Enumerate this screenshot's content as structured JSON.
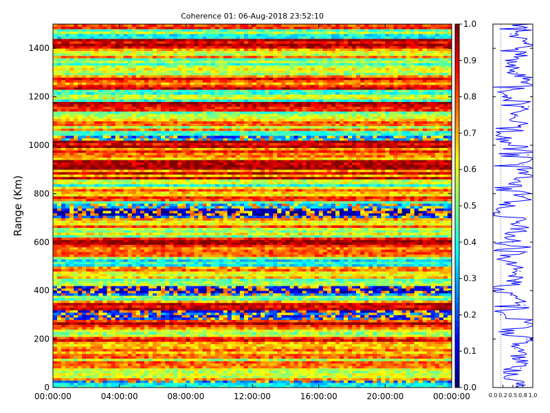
{
  "chart_data": [
    {
      "type": "heatmap",
      "title": "Coherence 01: 06-Aug-2018 23:52:10",
      "xlabel": "",
      "ylabel": "Range (Km)",
      "x_ticks": [
        "00:00:00",
        "04:00:00",
        "08:00:00",
        "12:00:00",
        "16:00:00",
        "20:00:00",
        "00:00:00"
      ],
      "y_ticks": [
        0,
        200,
        400,
        600,
        800,
        1000,
        1200,
        1400
      ],
      "ylim": [
        0,
        1500
      ],
      "color_scale": {
        "colormap": "jet",
        "range": [
          0,
          1
        ],
        "ticks": [
          "0.0",
          "0.1",
          "0.2",
          "0.3",
          "0.4",
          "0.5",
          "0.6",
          "0.7",
          "0.8",
          "0.9",
          "1.0"
        ]
      },
      "range_profile_km": [
        {
          "r": 20,
          "v": 0.35
        },
        {
          "r": 40,
          "v": 0.62
        },
        {
          "r": 80,
          "v": 0.68
        },
        {
          "r": 120,
          "v": 0.7
        },
        {
          "r": 160,
          "v": 0.66
        },
        {
          "r": 200,
          "v": 0.85
        },
        {
          "r": 220,
          "v": 0.45
        },
        {
          "r": 260,
          "v": 0.88
        },
        {
          "r": 300,
          "v": 0.22
        },
        {
          "r": 340,
          "v": 0.85
        },
        {
          "r": 380,
          "v": 0.4
        },
        {
          "r": 400,
          "v": 0.12
        },
        {
          "r": 440,
          "v": 0.55
        },
        {
          "r": 480,
          "v": 0.68
        },
        {
          "r": 520,
          "v": 0.4
        },
        {
          "r": 560,
          "v": 0.85
        },
        {
          "r": 600,
          "v": 0.9
        },
        {
          "r": 640,
          "v": 0.5
        },
        {
          "r": 680,
          "v": 0.66
        },
        {
          "r": 720,
          "v": 0.1
        },
        {
          "r": 750,
          "v": 0.4
        },
        {
          "r": 790,
          "v": 0.75
        },
        {
          "r": 840,
          "v": 0.52
        },
        {
          "r": 880,
          "v": 0.82
        },
        {
          "r": 920,
          "v": 0.88
        },
        {
          "r": 960,
          "v": 0.75
        },
        {
          "r": 1000,
          "v": 0.85
        },
        {
          "r": 1030,
          "v": 0.3
        },
        {
          "r": 1080,
          "v": 0.68
        },
        {
          "r": 1120,
          "v": 0.62
        },
        {
          "r": 1160,
          "v": 0.9
        },
        {
          "r": 1200,
          "v": 0.55
        },
        {
          "r": 1260,
          "v": 0.85
        },
        {
          "r": 1300,
          "v": 0.65
        },
        {
          "r": 1330,
          "v": 0.48
        },
        {
          "r": 1380,
          "v": 0.7
        },
        {
          "r": 1420,
          "v": 0.88
        },
        {
          "r": 1460,
          "v": 0.45
        },
        {
          "r": 1490,
          "v": 0.8
        }
      ]
    },
    {
      "type": "line",
      "title": "",
      "xlabel": "",
      "ylabel": "",
      "xlim": [
        0,
        1
      ],
      "x_ticks": [
        "0.0",
        "0.2",
        "0.5",
        "0.8",
        "1.0"
      ],
      "ylim": [
        0,
        1500
      ],
      "series": [
        {
          "color": "#0000ff",
          "x": [
            0.62,
            0.4,
            0.7,
            0.66,
            0.55,
            0.85,
            0.35,
            0.88,
            0.2,
            0.8,
            0.45,
            0.05,
            0.55,
            0.68,
            0.4,
            0.85,
            0.5,
            0.66,
            0.15,
            0.5,
            0.75,
            0.52,
            0.82,
            0.75,
            0.88,
            0.3,
            0.68,
            0.62,
            0.9,
            0.35,
            0.85,
            0.6,
            0.48,
            0.7,
            0.88,
            0.45,
            0.8,
            0.7
          ],
          "y": [
            20,
            40,
            80,
            120,
            160,
            200,
            220,
            260,
            300,
            340,
            380,
            400,
            440,
            480,
            520,
            560,
            600,
            680,
            720,
            750,
            790,
            840,
            880,
            920,
            960,
            1030,
            1080,
            1120,
            1160,
            1200,
            1260,
            1300,
            1330,
            1380,
            1420,
            1460,
            1480,
            1500
          ]
        }
      ]
    }
  ]
}
